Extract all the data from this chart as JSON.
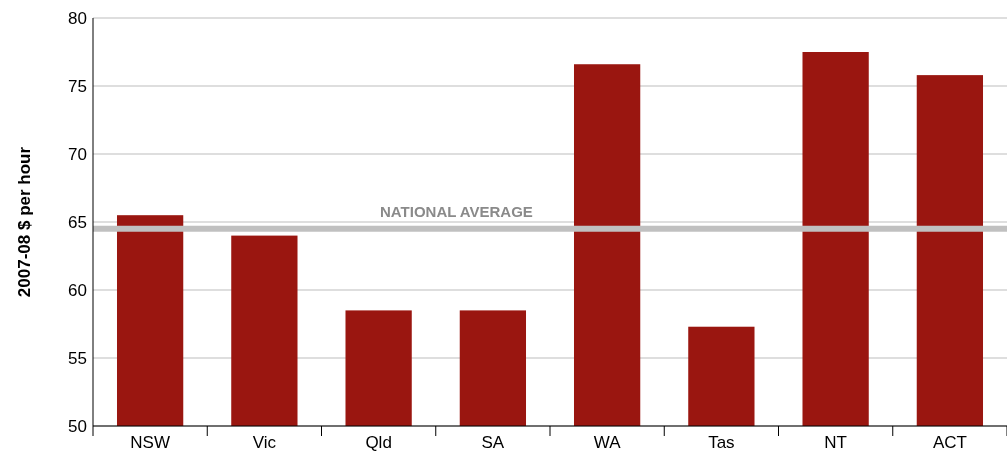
{
  "chart_data": {
    "type": "bar",
    "ylabel": "2007-08 $ per hour",
    "categories": [
      "NSW",
      "Vic",
      "Qld",
      "SA",
      "WA",
      "Tas",
      "NT",
      "ACT"
    ],
    "values": [
      65.5,
      64.0,
      58.5,
      58.5,
      76.6,
      57.3,
      77.5,
      75.8
    ],
    "color": "#9a1610",
    "ylim": [
      50,
      80
    ],
    "yticks": [
      50,
      55,
      60,
      65,
      70,
      75,
      80
    ],
    "grid": "y",
    "ref_lines": [
      {
        "axis": "y",
        "value": 64.5,
        "label": "NATIONAL AVERAGE",
        "color": "#c0c0c0"
      }
    ]
  }
}
